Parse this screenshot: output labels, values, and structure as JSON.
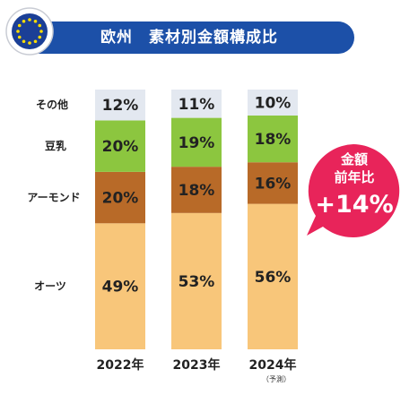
{
  "title": "欧州　素材別金額構成比",
  "colors": {
    "title_bar": "#1c50a8",
    "others": "#e3e8f0",
    "soy": "#8cc63f",
    "almond": "#b86a28",
    "oat": "#f8c67a",
    "badge": "#e8245a"
  },
  "badge": {
    "line1": "金額",
    "line2": "前年比",
    "value": "+14%"
  },
  "chart_data": {
    "type": "bar",
    "stacked": true,
    "title": "欧州　素材別金額構成比",
    "unit": "%",
    "categories": [
      "2022年",
      "2023年",
      "2024年"
    ],
    "category_note": [
      "",
      "",
      "（予測）"
    ],
    "series": [
      {
        "name": "オーツ",
        "values": [
          49,
          53,
          56
        ],
        "labels": [
          "49%",
          "53%",
          "56%"
        ],
        "color": "#f8c67a"
      },
      {
        "name": "アーモンド",
        "values": [
          20,
          18,
          16
        ],
        "labels": [
          "20%",
          "18%",
          "16%"
        ],
        "color": "#b86a28"
      },
      {
        "name": "豆乳",
        "values": [
          20,
          19,
          18
        ],
        "labels": [
          "20%",
          "19%",
          "18%"
        ],
        "color": "#8cc63f"
      },
      {
        "name": "その他",
        "values": [
          12,
          11,
          10
        ],
        "labels": [
          "12%",
          "11%",
          "10%"
        ],
        "color": "#e3e8f0"
      }
    ]
  }
}
